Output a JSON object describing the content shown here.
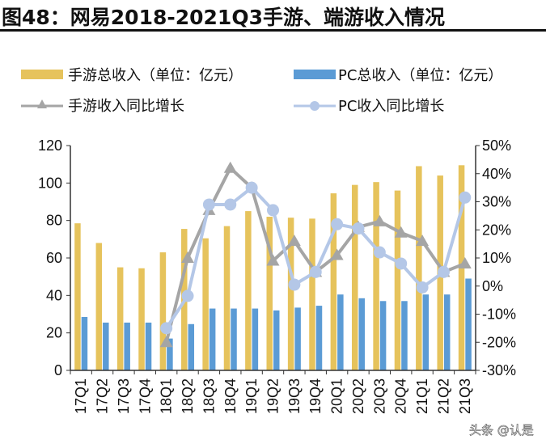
{
  "title": "图48：网易2018-2021Q3手游、端游收入情况",
  "watermark": "头条 @认是",
  "chart_data": {
    "type": "bar",
    "title": "图48：网易2018-2021Q3手游、端游收入情况",
    "categories": [
      "17Q1",
      "17Q2",
      "17Q3",
      "17Q4",
      "18Q1",
      "18Q2",
      "18Q3",
      "18Q4",
      "19Q1",
      "19Q2",
      "19Q3",
      "19Q4",
      "20Q1",
      "20Q2",
      "20Q3",
      "20Q4",
      "21Q1",
      "21Q2",
      "21Q3"
    ],
    "series": [
      {
        "name": "手游总收入（单位：亿元）",
        "type": "bar",
        "axis": "left",
        "color": "#E6C35C",
        "values": [
          78.5,
          68,
          55,
          54.5,
          63,
          75.5,
          70.5,
          77,
          85,
          82,
          81.5,
          81,
          94.5,
          99,
          100.5,
          96,
          109,
          104,
          109.5
        ]
      },
      {
        "name": "PC总收入（单位：亿元）",
        "type": "bar",
        "axis": "left",
        "color": "#5B9BD5",
        "values": [
          28.5,
          25.5,
          25.5,
          25.5,
          17,
          24.7,
          33,
          33,
          33,
          32,
          33.5,
          34.5,
          40.5,
          38.5,
          37,
          37,
          40.5,
          40.5,
          49
        ]
      },
      {
        "name": "手游收入同比增长",
        "type": "line",
        "axis": "right",
        "marker": "triangle",
        "color": "#A5A5A5",
        "values": [
          null,
          null,
          null,
          null,
          -20,
          10,
          27,
          42,
          35,
          9,
          16,
          5,
          11,
          21,
          23,
          19,
          16,
          5,
          8
        ]
      },
      {
        "name": "PC收入同比增长",
        "type": "line",
        "axis": "right",
        "marker": "circle",
        "color": "#B4C7E7",
        "values": [
          null,
          null,
          null,
          null,
          -15,
          -3.5,
          29,
          29,
          35,
          27,
          0.5,
          5,
          22,
          20.5,
          12,
          8,
          -0.5,
          5,
          31.5
        ]
      }
    ],
    "yleft": {
      "range": [
        0,
        120
      ],
      "ticks": [
        "0",
        "20",
        "40",
        "60",
        "80",
        "100",
        "120"
      ]
    },
    "yright": {
      "range": [
        -30,
        50
      ],
      "ticks": [
        "-30%",
        "-20%",
        "-10%",
        "0%",
        "10%",
        "20%",
        "30%",
        "40%",
        "50%"
      ]
    },
    "grid": false,
    "legend_placement": "top"
  }
}
